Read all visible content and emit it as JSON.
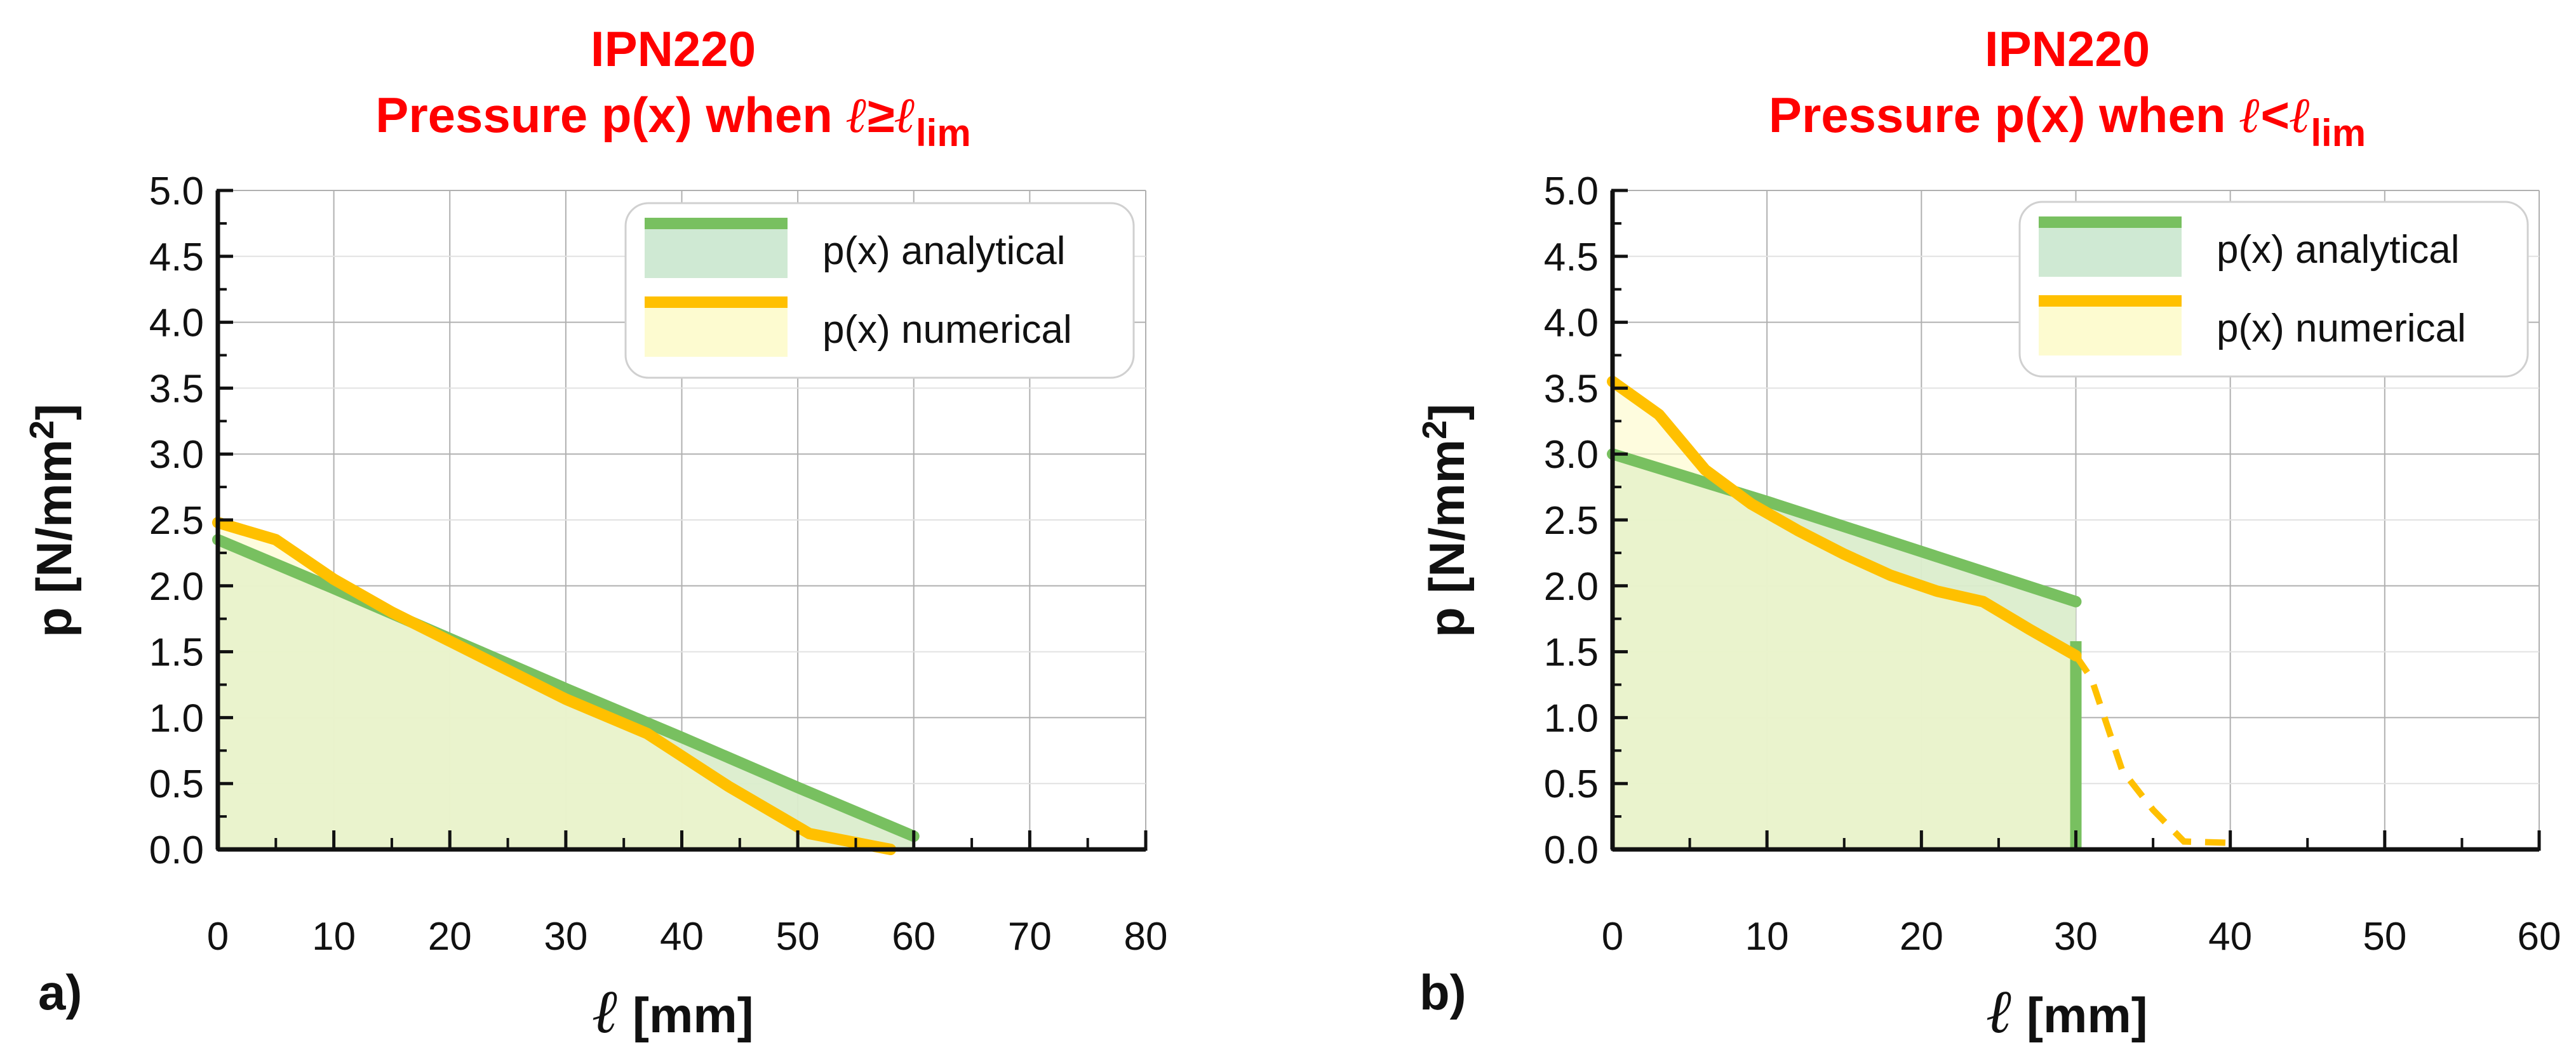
{
  "chart_data": [
    {
      "type": "line",
      "panel_label": "a)",
      "title_line1": "IPN220",
      "title_line2": {
        "pre": "Pressure p(x) when ",
        "ell1": "ℓ",
        "op": "≥",
        "ell2": "ℓ",
        "sub": "lim"
      },
      "ylabel": {
        "main": "p [N/mm",
        "sup": "2",
        "close": "]"
      },
      "xlabel": {
        "ell": "ℓ",
        "unit": " [mm]"
      },
      "xlim": [
        0,
        80
      ],
      "ylim": [
        0,
        5
      ],
      "xticks": [
        0,
        10,
        20,
        30,
        40,
        50,
        60,
        70,
        80
      ],
      "yticks": [
        "0.0",
        "0.5",
        "1.0",
        "1.5",
        "2.0",
        "2.5",
        "3.0",
        "3.5",
        "4.0",
        "4.5",
        "5.0"
      ],
      "grid": true,
      "legend_position": "top-right",
      "series": [
        {
          "name": "p(x) analytical",
          "color": "#78c060",
          "fill": "#cfe9d3",
          "points": [
            [
              0,
              2.35
            ],
            [
              10,
              1.98
            ],
            [
              20,
              1.6
            ],
            [
              30,
              1.22
            ],
            [
              40,
              0.85
            ],
            [
              50,
              0.47
            ],
            [
              60,
              0.1
            ]
          ]
        },
        {
          "name": "p(x) numerical",
          "color": "#ffc000",
          "fill": "#fdfbd0",
          "points": [
            [
              0,
              2.48
            ],
            [
              5,
              2.35
            ],
            [
              10,
              2.05
            ],
            [
              15,
              1.8
            ],
            [
              20,
              1.58
            ],
            [
              25,
              1.36
            ],
            [
              30,
              1.14
            ],
            [
              37,
              0.88
            ],
            [
              44,
              0.48
            ],
            [
              51,
              0.12
            ],
            [
              58,
              0.0
            ]
          ]
        }
      ]
    },
    {
      "type": "line",
      "panel_label": "b)",
      "title_line1": "IPN220",
      "title_line2": {
        "pre": "Pressure p(x) when ",
        "ell1": "ℓ",
        "op": "<",
        "ell2": "ℓ",
        "sub": "lim"
      },
      "ylabel": {
        "main": "p [N/mm",
        "sup": "2",
        "close": "]"
      },
      "xlabel": {
        "ell": "ℓ",
        "unit": " [mm]"
      },
      "xlim": [
        0,
        60
      ],
      "ylim": [
        0,
        5
      ],
      "xticks": [
        0,
        10,
        20,
        30,
        40,
        50,
        60
      ],
      "yticks": [
        "0.0",
        "0.5",
        "1.0",
        "1.5",
        "2.0",
        "2.5",
        "3.0",
        "3.5",
        "4.0",
        "4.5",
        "5.0"
      ],
      "grid": true,
      "legend_position": "top-right",
      "series": [
        {
          "name": "p(x) analytical",
          "color": "#78c060",
          "fill": "#cfe9d3",
          "points": [
            [
              0,
              3.0
            ],
            [
              10,
              2.64
            ],
            [
              20,
              2.26
            ],
            [
              30,
              1.88
            ]
          ],
          "drop": [
            [
              30,
              1.58
            ],
            [
              30,
              0.0
            ]
          ]
        },
        {
          "name": "p(x) numerical",
          "color": "#ffc000",
          "fill": "#fdfbd0",
          "points": [
            [
              0,
              3.55
            ],
            [
              3,
              3.3
            ],
            [
              6,
              2.88
            ],
            [
              9,
              2.62
            ],
            [
              12,
              2.42
            ],
            [
              15,
              2.24
            ],
            [
              18,
              2.08
            ],
            [
              21,
              1.96
            ],
            [
              24,
              1.88
            ],
            [
              27,
              1.67
            ],
            [
              30,
              1.47
            ]
          ],
          "dashed": [
            [
              30,
              1.47
            ],
            [
              31,
              1.3
            ],
            [
              32,
              0.95
            ],
            [
              33,
              0.6
            ],
            [
              35,
              0.3
            ],
            [
              37,
              0.06
            ],
            [
              40,
              0.05
            ]
          ]
        }
      ]
    }
  ]
}
